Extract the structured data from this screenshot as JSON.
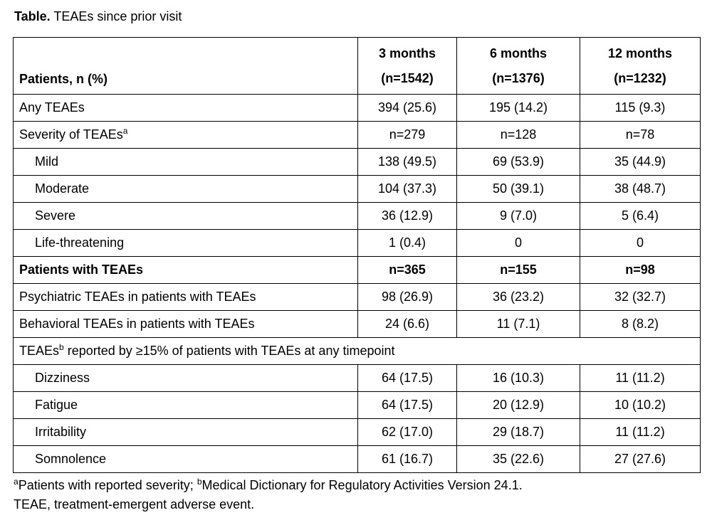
{
  "title": {
    "bold": "Table.",
    "rest": "TEAEs since prior visit"
  },
  "table": {
    "header": {
      "col0": "Patients, n (%)",
      "columns": [
        {
          "line1": "3 months",
          "line2": "(n=1542)"
        },
        {
          "line1": "6 months",
          "line2": "(n=1376)"
        },
        {
          "line1": "12 months",
          "line2": "(n=1232)"
        }
      ]
    },
    "rows": [
      {
        "label": "Any TEAEs",
        "values": [
          "394 (25.6)",
          "195 (14.2)",
          "115 (9.3)"
        ]
      },
      {
        "label": "Severity of TEAEs",
        "sup": "a",
        "values": [
          "n=279",
          "n=128",
          "n=78"
        ]
      },
      {
        "label": "Mild",
        "values": [
          "138 (49.5)",
          "69 (53.9)",
          "35 (44.9)"
        ]
      },
      {
        "label": "Moderate",
        "values": [
          "104 (37.3)",
          "50 (39.1)",
          "38 (48.7)"
        ]
      },
      {
        "label": "Severe",
        "values": [
          "36 (12.9)",
          "9 (7.0)",
          "5 (6.4)"
        ]
      },
      {
        "label": "Life-threatening",
        "values": [
          "1 (0.4)",
          "0",
          "0"
        ]
      },
      {
        "label": "Patients with TEAEs",
        "values": [
          "n=365",
          "n=155",
          "n=98"
        ]
      },
      {
        "label": "Psychiatric TEAEs in patients with TEAEs",
        "values": [
          "98 (26.9)",
          "36 (23.2)",
          "32 (32.7)"
        ]
      },
      {
        "label": "Behavioral TEAEs in patients with TEAEs",
        "values": [
          "24 (6.6)",
          "11 (7.1)",
          "8 (8.2)"
        ]
      },
      {
        "label": "TEAEs",
        "sup": "b",
        "label_rest": " reported by ≥15% of patients with TEAEs at any timepoint"
      },
      {
        "label": "Dizziness",
        "values": [
          "64 (17.5)",
          "16 (10.3)",
          "11 (11.2)"
        ]
      },
      {
        "label": "Fatigue",
        "values": [
          "64 (17.5)",
          "20 (12.9)",
          "10 (10.2)"
        ]
      },
      {
        "label": "Irritability",
        "values": [
          "62 (17.0)",
          "29 (18.7)",
          "11 (11.2)"
        ]
      },
      {
        "label": "Somnolence",
        "values": [
          "61 (16.7)",
          "35 (22.6)",
          "27 (27.6)"
        ]
      }
    ]
  },
  "footnotes": {
    "sup_a": "a",
    "text_a": "Patients with reported severity; ",
    "sup_b": "b",
    "text_b": "Medical Dictionary for Regulatory Activities Version 24.1.",
    "line2": "TEAE, treatment-emergent adverse event."
  },
  "colors": {
    "text": "#000000",
    "border": "#000000",
    "background": "#ffffff"
  }
}
